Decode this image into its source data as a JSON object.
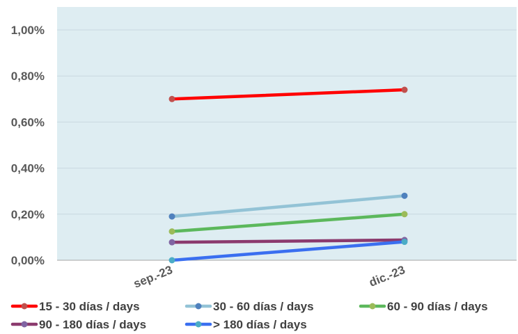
{
  "chart_data": {
    "type": "line",
    "categories": [
      "sep.-23",
      "dic.-23"
    ],
    "ylim": [
      0,
      1.1
    ],
    "yticks": [
      "0,00%",
      "0,20%",
      "0,40%",
      "0,60%",
      "0,80%",
      "1,00%"
    ],
    "ytick_values": [
      0,
      0.2,
      0.4,
      0.6,
      0.8,
      1.0
    ],
    "grid": true,
    "legend_position": "bottom",
    "series": [
      {
        "name": "15 - 30 días / days",
        "values": [
          0.7,
          0.74
        ],
        "color": "#ff0000",
        "marker_color": "#c0504d"
      },
      {
        "name": "30 - 60 días / days",
        "values": [
          0.19,
          0.28
        ],
        "color": "#93c3d6",
        "marker_color": "#4f81bd"
      },
      {
        "name": "60 - 90 días / days",
        "values": [
          0.125,
          0.2
        ],
        "color": "#5cb85c",
        "marker_color": "#9bbb59"
      },
      {
        "name": "90 - 180 días / days",
        "values": [
          0.078,
          0.088
        ],
        "color": "#8b3a6e",
        "marker_color": "#8064a2"
      },
      {
        "name": "> 180 días / days",
        "values": [
          0.0,
          0.08
        ],
        "color": "#3a6ff0",
        "marker_color": "#4bacc6"
      }
    ],
    "plot_background": "#deedf2",
    "grid_color": "#c8d8e0"
  }
}
